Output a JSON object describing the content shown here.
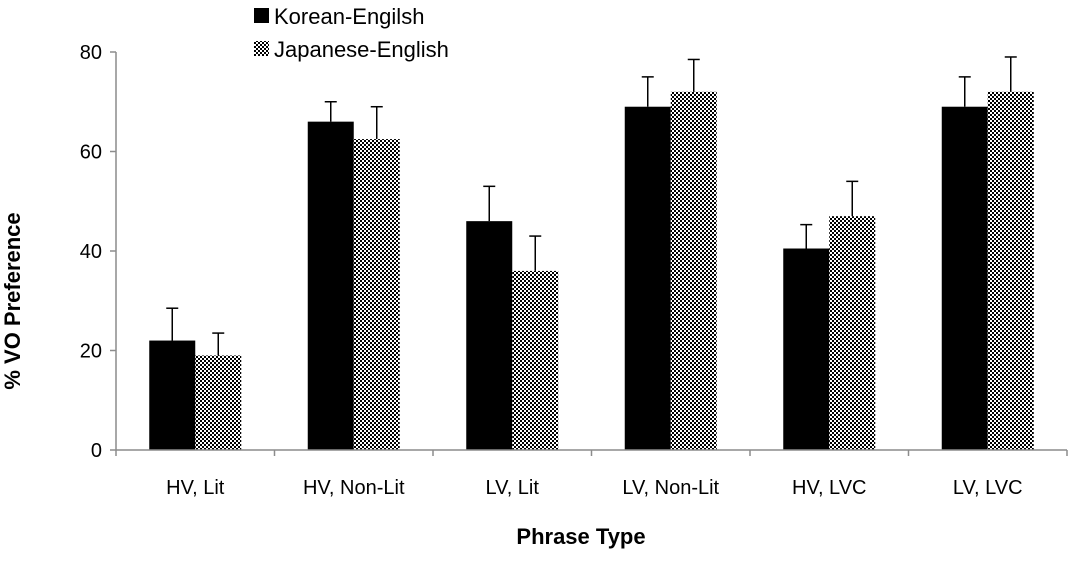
{
  "chart_data": {
    "type": "bar",
    "title": "",
    "xlabel": "Phrase Type",
    "ylabel": "% VO Preference",
    "ylim": [
      0,
      80
    ],
    "yticks": [
      0,
      20,
      40,
      60,
      80
    ],
    "grid": false,
    "legend_position": "top-left",
    "categories": [
      "HV, Lit",
      "HV, Non-Lit",
      "LV, Lit",
      "LV, Non-Lit",
      "HV, LVC",
      "LV, LVC"
    ],
    "series": [
      {
        "name": "Korean-Engilsh",
        "fill": "solid",
        "color": "#000000",
        "values": [
          22,
          66,
          46,
          69,
          40.5,
          69
        ],
        "error": [
          6.5,
          4,
          7,
          6,
          4.8,
          6
        ]
      },
      {
        "name": "Japanese-English",
        "fill": "checkered",
        "color": "#000000",
        "values": [
          19,
          62.5,
          36,
          72,
          47,
          72
        ],
        "error": [
          4.5,
          6.5,
          7,
          6.5,
          7,
          7
        ]
      }
    ]
  }
}
